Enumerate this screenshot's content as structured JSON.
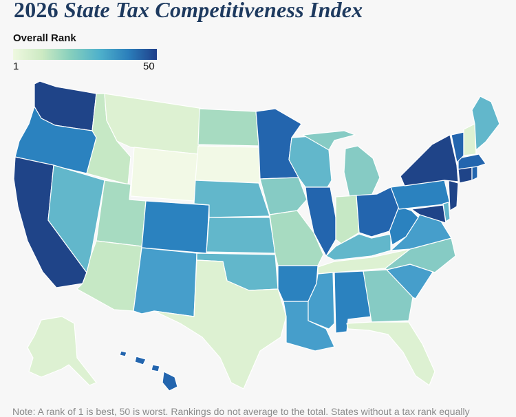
{
  "title": {
    "year": "2026",
    "rest": "State Tax Competitiveness Index"
  },
  "legend": {
    "label": "Overall Rank",
    "min": "1",
    "max": "50"
  },
  "note": "Note: A rank of 1 is best, 50 is worst. Rankings do not average to the total. States without a tax rank equally",
  "colors": {
    "c1": "#f2f9e6",
    "c2": "#ddf1d2",
    "c3": "#c6e8c5",
    "c4": "#a7dbc1",
    "c5": "#86cbc4",
    "c6": "#62b7cb",
    "c7": "#469ecb",
    "c8": "#2b82bf",
    "c9": "#2365ae",
    "c10": "#1f4488"
  }
}
